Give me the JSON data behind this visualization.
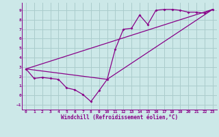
{
  "background_color": "#cce8e8",
  "grid_color": "#aacccc",
  "line_color": "#880088",
  "xlim": [
    -0.5,
    23.5
  ],
  "ylim": [
    -1.5,
    9.8
  ],
  "xlabel": "Windchill (Refroidissement éolien,°C)",
  "yticks": [
    -1,
    0,
    1,
    2,
    3,
    4,
    5,
    6,
    7,
    8,
    9
  ],
  "xticks": [
    0,
    1,
    2,
    3,
    4,
    5,
    6,
    7,
    8,
    9,
    10,
    11,
    12,
    13,
    14,
    15,
    16,
    17,
    18,
    19,
    20,
    21,
    22,
    23
  ],
  "line1_x": [
    0,
    1,
    2,
    3,
    4,
    5,
    6,
    7,
    8,
    9,
    10,
    11,
    12,
    13,
    14,
    15,
    16,
    17,
    18,
    19,
    20,
    21,
    22,
    23
  ],
  "line1_y": [
    2.8,
    1.8,
    1.9,
    1.8,
    1.7,
    0.8,
    0.6,
    0.1,
    -0.65,
    0.5,
    1.7,
    4.9,
    7.0,
    7.1,
    8.5,
    7.5,
    9.0,
    9.1,
    9.1,
    9.0,
    8.8,
    8.8,
    8.7,
    9.1
  ],
  "line2_x": [
    0,
    23
  ],
  "line2_y": [
    2.8,
    9.1
  ],
  "line3_x": [
    0,
    10,
    23
  ],
  "line3_y": [
    2.8,
    1.7,
    9.1
  ]
}
